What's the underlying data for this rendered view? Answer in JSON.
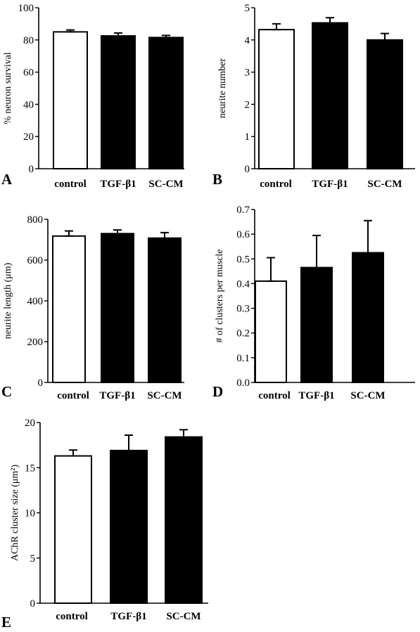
{
  "chart_data": [
    {
      "panel": "A",
      "type": "bar",
      "categories": [
        "control",
        "TGF-β1",
        "SC-CM"
      ],
      "values": [
        85,
        82.5,
        81.5
      ],
      "errors": [
        1.2,
        1.8,
        1.3
      ],
      "fills": [
        "#ffffff",
        "#000000",
        "#000000"
      ],
      "ylabel": "% neuron survival",
      "ylim": [
        0,
        100
      ],
      "yticks": [
        "0",
        "20",
        "40",
        "60",
        "80",
        "100"
      ]
    },
    {
      "panel": "B",
      "type": "bar",
      "categories": [
        "control",
        "TGF-β1",
        "SC-CM"
      ],
      "values": [
        4.32,
        4.53,
        4.0
      ],
      "errors": [
        0.18,
        0.16,
        0.2
      ],
      "fills": [
        "#ffffff",
        "#000000",
        "#000000"
      ],
      "ylabel": "neurite number",
      "ylim": [
        0,
        5
      ],
      "yticks": [
        "0",
        "1",
        "2",
        "3",
        "4",
        "5"
      ]
    },
    {
      "panel": "C",
      "type": "bar",
      "categories": [
        "control",
        "TGF-β1",
        "SC-CM"
      ],
      "values": [
        718,
        730,
        708
      ],
      "errors": [
        25,
        18,
        27
      ],
      "fills": [
        "#ffffff",
        "#000000",
        "#000000"
      ],
      "ylabel": "neurite length (μm)",
      "ylim": [
        0,
        800
      ],
      "yticks": [
        "0",
        "200",
        "400",
        "600",
        "800"
      ]
    },
    {
      "panel": "D",
      "type": "bar",
      "categories": [
        "control",
        "TGF-β1",
        "SC-CM"
      ],
      "values": [
        0.41,
        0.465,
        0.525
      ],
      "errors": [
        0.095,
        0.13,
        0.13
      ],
      "fills": [
        "#ffffff",
        "#000000",
        "#000000"
      ],
      "ylabel": "# of clusters per muscle",
      "ylim": [
        0,
        0.7
      ],
      "yticks": [
        "0.0",
        "0.1",
        "0.2",
        "0.3",
        "0.4",
        "0.5",
        "0.6",
        "0.7"
      ]
    },
    {
      "panel": "E",
      "type": "bar",
      "categories": [
        "control",
        "TGF-β1",
        "SC-CM"
      ],
      "values": [
        16.3,
        16.9,
        18.4
      ],
      "errors": [
        0.65,
        1.7,
        0.8
      ],
      "fills": [
        "#ffffff",
        "#000000",
        "#000000"
      ],
      "ylabel": "AChR cluster size (μm²)",
      "ylim": [
        0,
        20
      ],
      "yticks": [
        "0",
        "5",
        "10",
        "15",
        "20"
      ]
    }
  ]
}
